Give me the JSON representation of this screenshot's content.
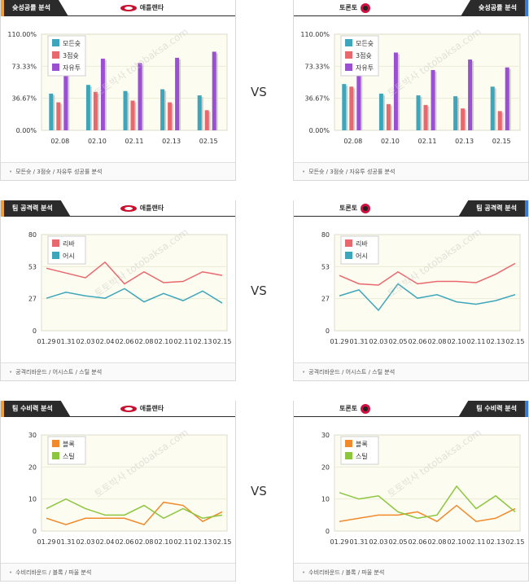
{
  "vs_label": "VS",
  "left_team": {
    "name": "애틀랜타"
  },
  "right_team": {
    "name": "토론토"
  },
  "sections": [
    {
      "title": "슛성공률 분석",
      "footer": "모든슛 / 3점슛 / 자유투 성공률 분석"
    },
    {
      "title": "팀 공격력 분석",
      "footer": "공격리바운드 / 어시스트 / 스틸 분석"
    },
    {
      "title": "팀 수비력 분석",
      "footer": "수비리바운드 / 블록 / 파울 분석"
    }
  ],
  "watermark": "토토박사 totobaksa.com",
  "colors": {
    "teal": "#3ea6bb",
    "red": "#e8686d",
    "purple": "#9b4fd1",
    "orange": "#f08a2c",
    "green": "#8cc63f",
    "plot_bg": "#fdfcf0"
  },
  "chart_data": [
    {
      "id": "shoot-left",
      "type": "bar",
      "ylim": [
        0,
        110
      ],
      "yticks": [
        "0.00%",
        "36.67%",
        "73.33%",
        "110.00%"
      ],
      "categories": [
        "02.08",
        "02.10",
        "02.11",
        "02.13",
        "02.15"
      ],
      "series": [
        {
          "name": "모든슛",
          "color": "#3ea6bb",
          "values": [
            42,
            52,
            45,
            47,
            40
          ]
        },
        {
          "name": "3점슛",
          "color": "#e8686d",
          "values": [
            32,
            44,
            34,
            32,
            23
          ]
        },
        {
          "name": "자유투",
          "color": "#9b4fd1",
          "values": [
            67,
            82,
            77,
            83,
            90
          ]
        }
      ]
    },
    {
      "id": "shoot-right",
      "type": "bar",
      "ylim": [
        0,
        110
      ],
      "yticks": [
        "0.00%",
        "36.67%",
        "73.33%",
        "110.00%"
      ],
      "categories": [
        "02.08",
        "02.10",
        "02.11",
        "02.13",
        "02.15"
      ],
      "series": [
        {
          "name": "모든슛",
          "color": "#3ea6bb",
          "values": [
            53,
            42,
            40,
            39,
            50
          ]
        },
        {
          "name": "3점슛",
          "color": "#e8686d",
          "values": [
            50,
            30,
            29,
            25,
            22
          ]
        },
        {
          "name": "자유투",
          "color": "#9b4fd1",
          "values": [
            70,
            89,
            69,
            81,
            72
          ]
        }
      ]
    },
    {
      "id": "attack-left",
      "type": "line",
      "ylim": [
        0,
        80
      ],
      "yticks": [
        "0",
        "27",
        "53",
        "80"
      ],
      "categories": [
        "01.29",
        "01.31",
        "02.03",
        "02.04",
        "02.06",
        "02.08",
        "02.10",
        "02.11",
        "02.13",
        "02.15"
      ],
      "series": [
        {
          "name": "리바",
          "color": "#e8686d",
          "values": [
            52,
            48,
            44,
            57,
            39,
            49,
            40,
            41,
            49,
            46
          ]
        },
        {
          "name": "어시",
          "color": "#3ea6bb",
          "values": [
            27,
            32,
            29,
            27,
            35,
            24,
            31,
            25,
            33,
            23
          ]
        }
      ]
    },
    {
      "id": "attack-right",
      "type": "line",
      "ylim": [
        0,
        80
      ],
      "yticks": [
        "0",
        "27",
        "53",
        "80"
      ],
      "categories": [
        "01.29",
        "01.31",
        "02.03",
        "02.05",
        "02.06",
        "02.08",
        "02.10",
        "02.11",
        "02.13",
        "02.15"
      ],
      "series": [
        {
          "name": "리바",
          "color": "#e8686d",
          "values": [
            46,
            39,
            38,
            49,
            39,
            41,
            41,
            40,
            47,
            56
          ]
        },
        {
          "name": "어시",
          "color": "#3ea6bb",
          "values": [
            29,
            34,
            17,
            39,
            27,
            30,
            24,
            22,
            25,
            30
          ]
        }
      ]
    },
    {
      "id": "defense-left",
      "type": "line",
      "ylim": [
        0,
        30
      ],
      "yticks": [
        "0",
        "10",
        "20",
        "30"
      ],
      "categories": [
        "01.29",
        "01.31",
        "02.03",
        "02.04",
        "02.06",
        "02.08",
        "02.10",
        "02.11",
        "02.13",
        "02.15"
      ],
      "series": [
        {
          "name": "블록",
          "color": "#f08a2c",
          "values": [
            4,
            2,
            4,
            4,
            4,
            2,
            9,
            8,
            3,
            6
          ]
        },
        {
          "name": "스틸",
          "color": "#8cc63f",
          "values": [
            7,
            10,
            7,
            5,
            5,
            8,
            4,
            7,
            4,
            5
          ]
        }
      ]
    },
    {
      "id": "defense-right",
      "type": "line",
      "ylim": [
        0,
        30
      ],
      "yticks": [
        "0",
        "10",
        "20",
        "30"
      ],
      "categories": [
        "01.29",
        "01.31",
        "02.03",
        "02.05",
        "02.06",
        "02.08",
        "02.10",
        "02.11",
        "02.13",
        "02.15"
      ],
      "series": [
        {
          "name": "블록",
          "color": "#f08a2c",
          "values": [
            3,
            4,
            5,
            5,
            6,
            3,
            8,
            3,
            4,
            7
          ]
        },
        {
          "name": "스틸",
          "color": "#8cc63f",
          "values": [
            12,
            10,
            11,
            6,
            4,
            5,
            14,
            7,
            11,
            6
          ]
        }
      ]
    }
  ]
}
